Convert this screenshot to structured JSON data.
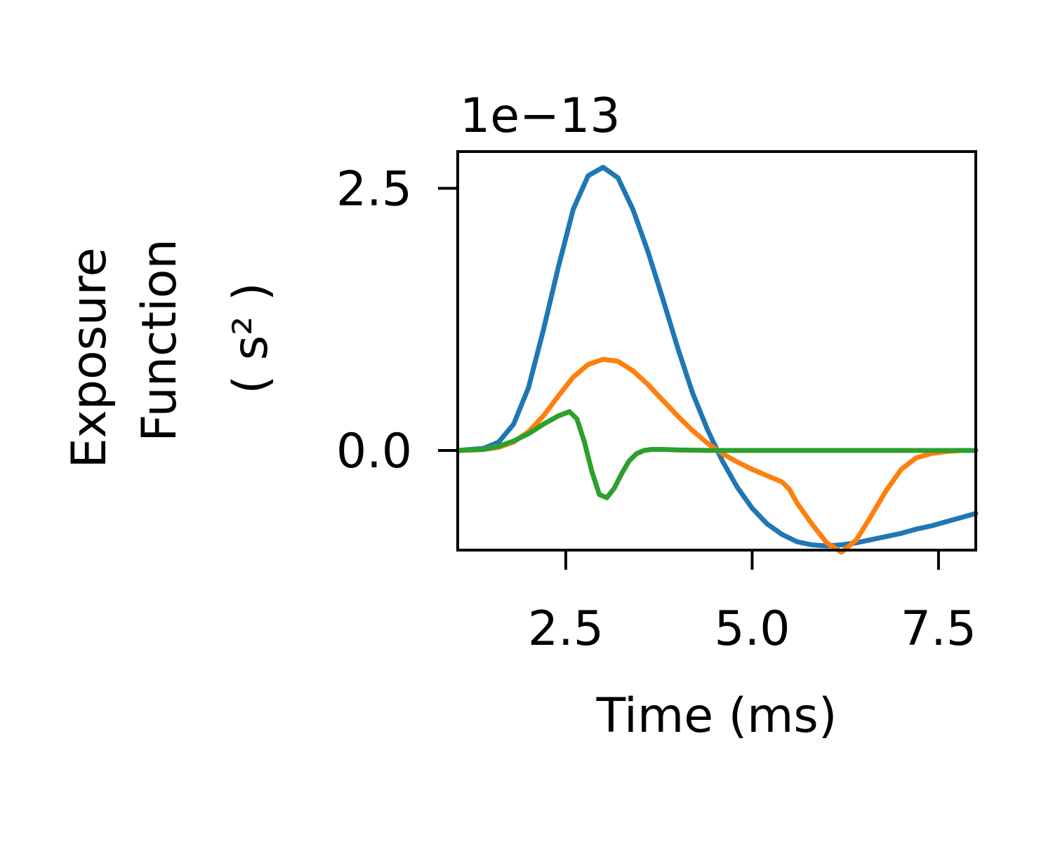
{
  "chart_data": {
    "type": "line",
    "title": "",
    "xlabel": "Time (ms)",
    "ylabel_lines": [
      "Exposure",
      "Function",
      "( s² )"
    ],
    "y_offset_text": "1e−13",
    "xlim": [
      1.05,
      8.0
    ],
    "ylim": [
      -0.95,
      2.85
    ],
    "xticks": [
      2.5,
      5.0,
      7.5
    ],
    "xtick_labels": [
      "2.5",
      "5.0",
      "7.5"
    ],
    "yticks": [
      0.0,
      2.5
    ],
    "ytick_labels": [
      "0.0",
      "2.5"
    ],
    "grid": false,
    "legend": "none",
    "series": [
      {
        "color": "#1f77b4",
        "x": [
          1.05,
          1.4,
          1.6,
          1.8,
          2.0,
          2.2,
          2.4,
          2.6,
          2.8,
          3.0,
          3.2,
          3.4,
          3.6,
          3.8,
          4.0,
          4.2,
          4.4,
          4.6,
          4.8,
          5.0,
          5.2,
          5.4,
          5.6,
          5.8,
          6.0,
          6.2,
          6.4,
          6.6,
          6.8,
          7.0,
          7.2,
          7.4,
          7.6,
          7.8,
          8.0
        ],
        "y": [
          0.0,
          0.02,
          0.08,
          0.25,
          0.6,
          1.15,
          1.75,
          2.3,
          2.62,
          2.7,
          2.6,
          2.3,
          1.9,
          1.45,
          0.98,
          0.55,
          0.2,
          -0.1,
          -0.35,
          -0.55,
          -0.7,
          -0.8,
          -0.87,
          -0.9,
          -0.91,
          -0.9,
          -0.88,
          -0.85,
          -0.82,
          -0.79,
          -0.75,
          -0.72,
          -0.68,
          -0.64,
          -0.6
        ]
      },
      {
        "color": "#ff7f0e",
        "x": [
          1.05,
          1.4,
          1.6,
          1.8,
          2.0,
          2.2,
          2.4,
          2.6,
          2.8,
          3.0,
          3.2,
          3.4,
          3.6,
          3.8,
          4.0,
          4.2,
          4.4,
          4.6,
          4.8,
          5.0,
          5.2,
          5.4,
          5.5,
          5.6,
          5.8,
          6.0,
          6.2,
          6.4,
          6.6,
          6.8,
          7.0,
          7.2,
          7.4,
          7.6,
          7.8,
          8.0
        ],
        "y": [
          0.0,
          0.01,
          0.03,
          0.08,
          0.18,
          0.33,
          0.52,
          0.7,
          0.82,
          0.87,
          0.85,
          0.76,
          0.63,
          0.48,
          0.33,
          0.19,
          0.07,
          -0.03,
          -0.11,
          -0.18,
          -0.24,
          -0.3,
          -0.37,
          -0.5,
          -0.7,
          -0.88,
          -0.97,
          -0.85,
          -0.62,
          -0.38,
          -0.18,
          -0.07,
          -0.03,
          -0.01,
          0.0,
          0.0
        ]
      },
      {
        "color": "#2ca02c",
        "x": [
          1.05,
          1.4,
          1.6,
          1.8,
          2.0,
          2.2,
          2.4,
          2.55,
          2.65,
          2.75,
          2.85,
          2.95,
          3.05,
          3.15,
          3.25,
          3.35,
          3.45,
          3.55,
          3.65,
          3.8,
          4.0,
          4.5,
          5.0,
          6.0,
          7.0,
          8.0
        ],
        "y": [
          0.0,
          0.01,
          0.04,
          0.09,
          0.16,
          0.25,
          0.33,
          0.37,
          0.3,
          0.08,
          -0.2,
          -0.42,
          -0.45,
          -0.36,
          -0.22,
          -0.1,
          -0.03,
          0.0,
          0.01,
          0.01,
          0.005,
          0.0,
          0.0,
          0.0,
          0.0,
          0.0
        ]
      }
    ]
  }
}
